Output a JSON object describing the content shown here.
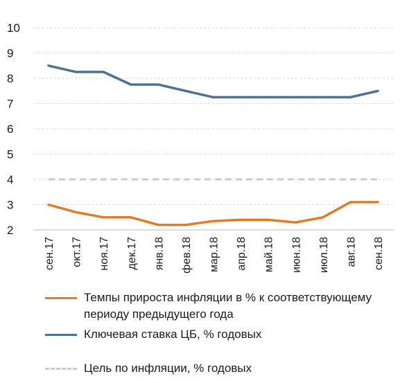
{
  "chart_data": {
    "type": "line",
    "categories": [
      "сен.17",
      "окт.17",
      "ноя.17",
      "дек.17",
      "янв.18",
      "фев.18",
      "мар.18",
      "апр.18",
      "май.18",
      "июн.18",
      "июл.18",
      "авг.18",
      "сен.18"
    ],
    "series": [
      {
        "name": "Темпы прироста инфляции в % к соответствующему периоду предыдущего года",
        "color": "#e07b2a",
        "style": "solid",
        "values": [
          3.0,
          2.7,
          2.5,
          2.5,
          2.2,
          2.2,
          2.35,
          2.4,
          2.4,
          2.3,
          2.5,
          3.1,
          3.1
        ]
      },
      {
        "name": "Ключевая ставка ЦБ, % годовых",
        "color": "#4d7291",
        "style": "solid",
        "values": [
          8.5,
          8.25,
          8.25,
          7.75,
          7.75,
          7.5,
          7.25,
          7.25,
          7.25,
          7.25,
          7.25,
          7.25,
          7.5
        ]
      },
      {
        "name": "Цель по инфляции, % годовых",
        "color": "#c5ccd2",
        "style": "dashed",
        "values": [
          4,
          4,
          4,
          4,
          4,
          4,
          4,
          4,
          4,
          4,
          4,
          4,
          4
        ]
      }
    ],
    "ylim": [
      2,
      10
    ],
    "yticks": [
      "2",
      "3",
      "4",
      "5",
      "6",
      "7",
      "8",
      "9",
      "10"
    ],
    "grid": true,
    "legend_placement": "bottom",
    "title": "",
    "xlabel": "",
    "ylabel": ""
  }
}
